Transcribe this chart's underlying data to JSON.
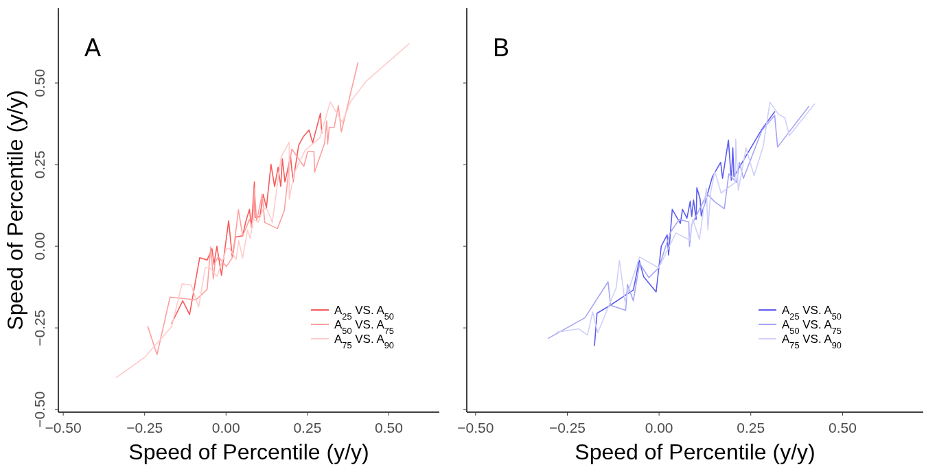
{
  "chart_data": [
    {
      "type": "line",
      "xlabel": "Speed of Percentile (y/y)",
      "ylabel": "Speed of Percentile (y/y)",
      "annotations": [
        "A"
      ],
      "xlim": [
        -0.515,
        0.655
      ],
      "ylim": [
        -0.508,
        0.729
      ],
      "xticks": [
        {
          "value": -0.5,
          "label": "−0.50"
        },
        {
          "value": -0.25,
          "label": "−0.25"
        },
        {
          "value": 0,
          "label": "0.00"
        },
        {
          "value": 0.25,
          "label": "0.25"
        },
        {
          "value": 0.5,
          "label": "0.50"
        }
      ],
      "yticks": [
        {
          "value": -0.5,
          "label": "−0.50"
        },
        {
          "value": -0.25,
          "label": "−0.25"
        },
        {
          "value": 0,
          "label": "0.00"
        },
        {
          "value": 0.25,
          "label": "0.25"
        },
        {
          "value": 0.5,
          "label": "0.50"
        }
      ],
      "grid": false,
      "legend": "bottom right",
      "series": [
        {
          "name": "A$_{25}$ VS. A$_{50}$",
          "color": "#f85a5a",
          "x": [
            -0.167,
            -0.133,
            -0.112,
            -0.081,
            -0.058,
            -0.043,
            -0.037,
            -0.028,
            -0.014,
            0.008,
            0.019,
            0.029,
            0.051,
            0.061,
            0.072,
            0.078,
            0.087,
            0.089,
            0.104,
            0.114,
            0.124,
            0.138,
            0.149,
            0.16,
            0.168,
            0.173,
            0.181,
            0.198,
            0.206,
            0.223,
            0.237,
            0.255,
            0.266,
            0.29,
            0.294
          ],
          "values": [
            -0.236,
            -0.167,
            -0.209,
            -0.035,
            -0.042,
            -0.008,
            -0.055,
            0,
            -0.089,
            0.078,
            -0.032,
            0.028,
            0.032,
            0.077,
            0.113,
            0.058,
            0.197,
            0.088,
            0.091,
            0.159,
            0.118,
            0.251,
            0.183,
            0.242,
            0.183,
            0.268,
            0.197,
            0.275,
            0.198,
            0.309,
            0.335,
            0.356,
            0.317,
            0.407,
            0.347
          ]
        },
        {
          "name": "A$_{50}$ VS. A$_{75}$",
          "color": "#ff9e9e",
          "x": [
            -0.24,
            -0.212,
            -0.172,
            -0.092,
            -0.058,
            -0.047,
            -0.039,
            -0.034,
            -0.024,
            0.001,
            0.021,
            0.038,
            0.051,
            0.072,
            0.081,
            0.087,
            0.094,
            0.111,
            0.119,
            0.158,
            0.179,
            0.194,
            0.202,
            0.22,
            0.239,
            0.251,
            0.27,
            0.272,
            0.303,
            0.309,
            0.312,
            0.317,
            0.332,
            0.345,
            0.354,
            0.405
          ],
          "values": [
            -0.246,
            -0.332,
            -0.156,
            -0.164,
            -0.132,
            -0.002,
            -0.1,
            -0.051,
            -0.032,
            -0.062,
            -0.032,
            0.112,
            0.032,
            0.082,
            0.058,
            0.178,
            0.077,
            0.159,
            0.073,
            0.054,
            0.11,
            0.245,
            0.298,
            0.272,
            0.245,
            0.29,
            0.29,
            0.227,
            0.317,
            0.384,
            0.313,
            0.364,
            0.364,
            0.431,
            0.35,
            0.562
          ]
        },
        {
          "name": "A$_{75}$ VS. A$_{90}$",
          "color": "#ffcccc",
          "x": [
            -0.337,
            -0.25,
            -0.167,
            -0.135,
            -0.107,
            -0.084,
            -0.064,
            -0.05,
            -0.028,
            -0.013,
            0.001,
            0.01,
            0.031,
            0.039,
            0.051,
            0.066,
            0.074,
            0.084,
            0.099,
            0.115,
            0.127,
            0.142,
            0.169,
            0.194,
            0.194,
            0.209,
            0.243,
            0.288,
            0.32,
            0.339,
            0.357,
            0.383,
            0.431,
            0.562
          ],
          "values": [
            -0.402,
            -0.34,
            -0.246,
            -0.115,
            -0.119,
            -0.186,
            -0.066,
            -0.066,
            -0.092,
            -0.051,
            -0.008,
            -0.006,
            -0.04,
            0.017,
            -0.036,
            0.05,
            0.024,
            0.084,
            0.073,
            0.118,
            0.112,
            0.073,
            0.273,
            0.319,
            0.144,
            0.223,
            0.294,
            0.332,
            0.442,
            0.41,
            0.38,
            0.444,
            0.506,
            0.62
          ]
        }
      ]
    },
    {
      "type": "line",
      "xlabel": "Speed of Percentile (y/y)",
      "annotations": [
        "B"
      ],
      "xlim": [
        -0.524,
        0.72
      ],
      "ylim": [
        -0.508,
        0.729
      ],
      "tick_labels": "x",
      "xticks": [
        {
          "value": -0.5,
          "label": "−0.50"
        },
        {
          "value": -0.25,
          "label": "−0.25"
        },
        {
          "value": 0,
          "label": "0.00"
        },
        {
          "value": 0.25,
          "label": "0.25"
        },
        {
          "value": 0.5,
          "label": "0.50"
        }
      ],
      "yticks": [
        {
          "value": -0.5,
          "label": null
        },
        {
          "value": -0.25,
          "label": null
        },
        {
          "value": 0,
          "label": null
        },
        {
          "value": 0.25,
          "label": null
        },
        {
          "value": 0.5,
          "label": null
        }
      ],
      "grid": false,
      "legend": "bottom right",
      "series": [
        {
          "name": "A$_{25}$ VS. A$_{50}$",
          "color": "#5c5cf0",
          "x": [
            -0.176,
            -0.169,
            -0.136,
            -0.07,
            -0.054,
            -0.042,
            -0.008,
            0.006,
            0.022,
            0.026,
            0.036,
            0.058,
            0.064,
            0.076,
            0.085,
            0.089,
            0.094,
            0.101,
            0.103,
            0.112,
            0.115,
            0.131,
            0.145,
            0.154,
            0.168,
            0.173,
            0.189,
            0.197,
            0.201,
            0.204,
            0.28,
            0.315
          ],
          "values": [
            -0.304,
            -0.205,
            -0.183,
            -0.134,
            -0.043,
            -0.093,
            -0.14,
            0,
            0.035,
            -0.027,
            0.113,
            0.07,
            0.113,
            0.086,
            0.138,
            0.091,
            0.142,
            0.082,
            0.179,
            0.144,
            0.093,
            0.156,
            0.212,
            0.23,
            0.257,
            0.208,
            0.325,
            0.202,
            0.301,
            0.214,
            0.358,
            0.412
          ]
        },
        {
          "name": "A$_{50}$ VS. A$_{75}$",
          "color": "#a5a5f5",
          "x": [
            -0.302,
            -0.202,
            -0.139,
            -0.132,
            -0.091,
            -0.086,
            -0.07,
            -0.053,
            -0.028,
            -0.001,
            0.031,
            0.055,
            0.081,
            0.083,
            0.089,
            0.131,
            0.152,
            0.178,
            0.19,
            0.211,
            0.219,
            0.23,
            0.28,
            0.315,
            0.323,
            0.408
          ],
          "values": [
            -0.282,
            -0.219,
            -0.109,
            -0.181,
            -0.196,
            -0.117,
            -0.167,
            -0.052,
            -0.096,
            -0.066,
            0.043,
            0.082,
            0.075,
            0,
            0.066,
            0.16,
            0.136,
            0.115,
            0.222,
            0.195,
            0.257,
            0.208,
            0.354,
            0.401,
            0.304,
            0.428
          ]
        },
        {
          "name": "A$_{75}$ VS. A$_{90}$",
          "color": "#d0d0fa",
          "x": [
            -0.278,
            -0.219,
            -0.195,
            -0.181,
            -0.167,
            -0.117,
            -0.108,
            -0.093,
            -0.053,
            -0.001,
            0.046,
            0.083,
            0.092,
            0.11,
            0.129,
            0.133,
            0.141,
            0.152,
            0.169,
            0.207,
            0.209,
            0.216,
            0.237,
            0.259,
            0.284,
            0.302,
            0.325,
            0.343,
            0.355,
            0.424
          ],
          "values": [
            -0.263,
            -0.253,
            -0.272,
            -0.202,
            -0.265,
            -0.128,
            -0.043,
            -0.169,
            -0.033,
            -0.066,
            0.041,
            0.019,
            0.082,
            0.021,
            0.177,
            0.05,
            0.167,
            0.23,
            0.163,
            0.195,
            0.328,
            0.171,
            0.301,
            0.216,
            0.307,
            0.441,
            0.405,
            0.393,
            0.339,
            0.436
          ]
        }
      ]
    }
  ]
}
